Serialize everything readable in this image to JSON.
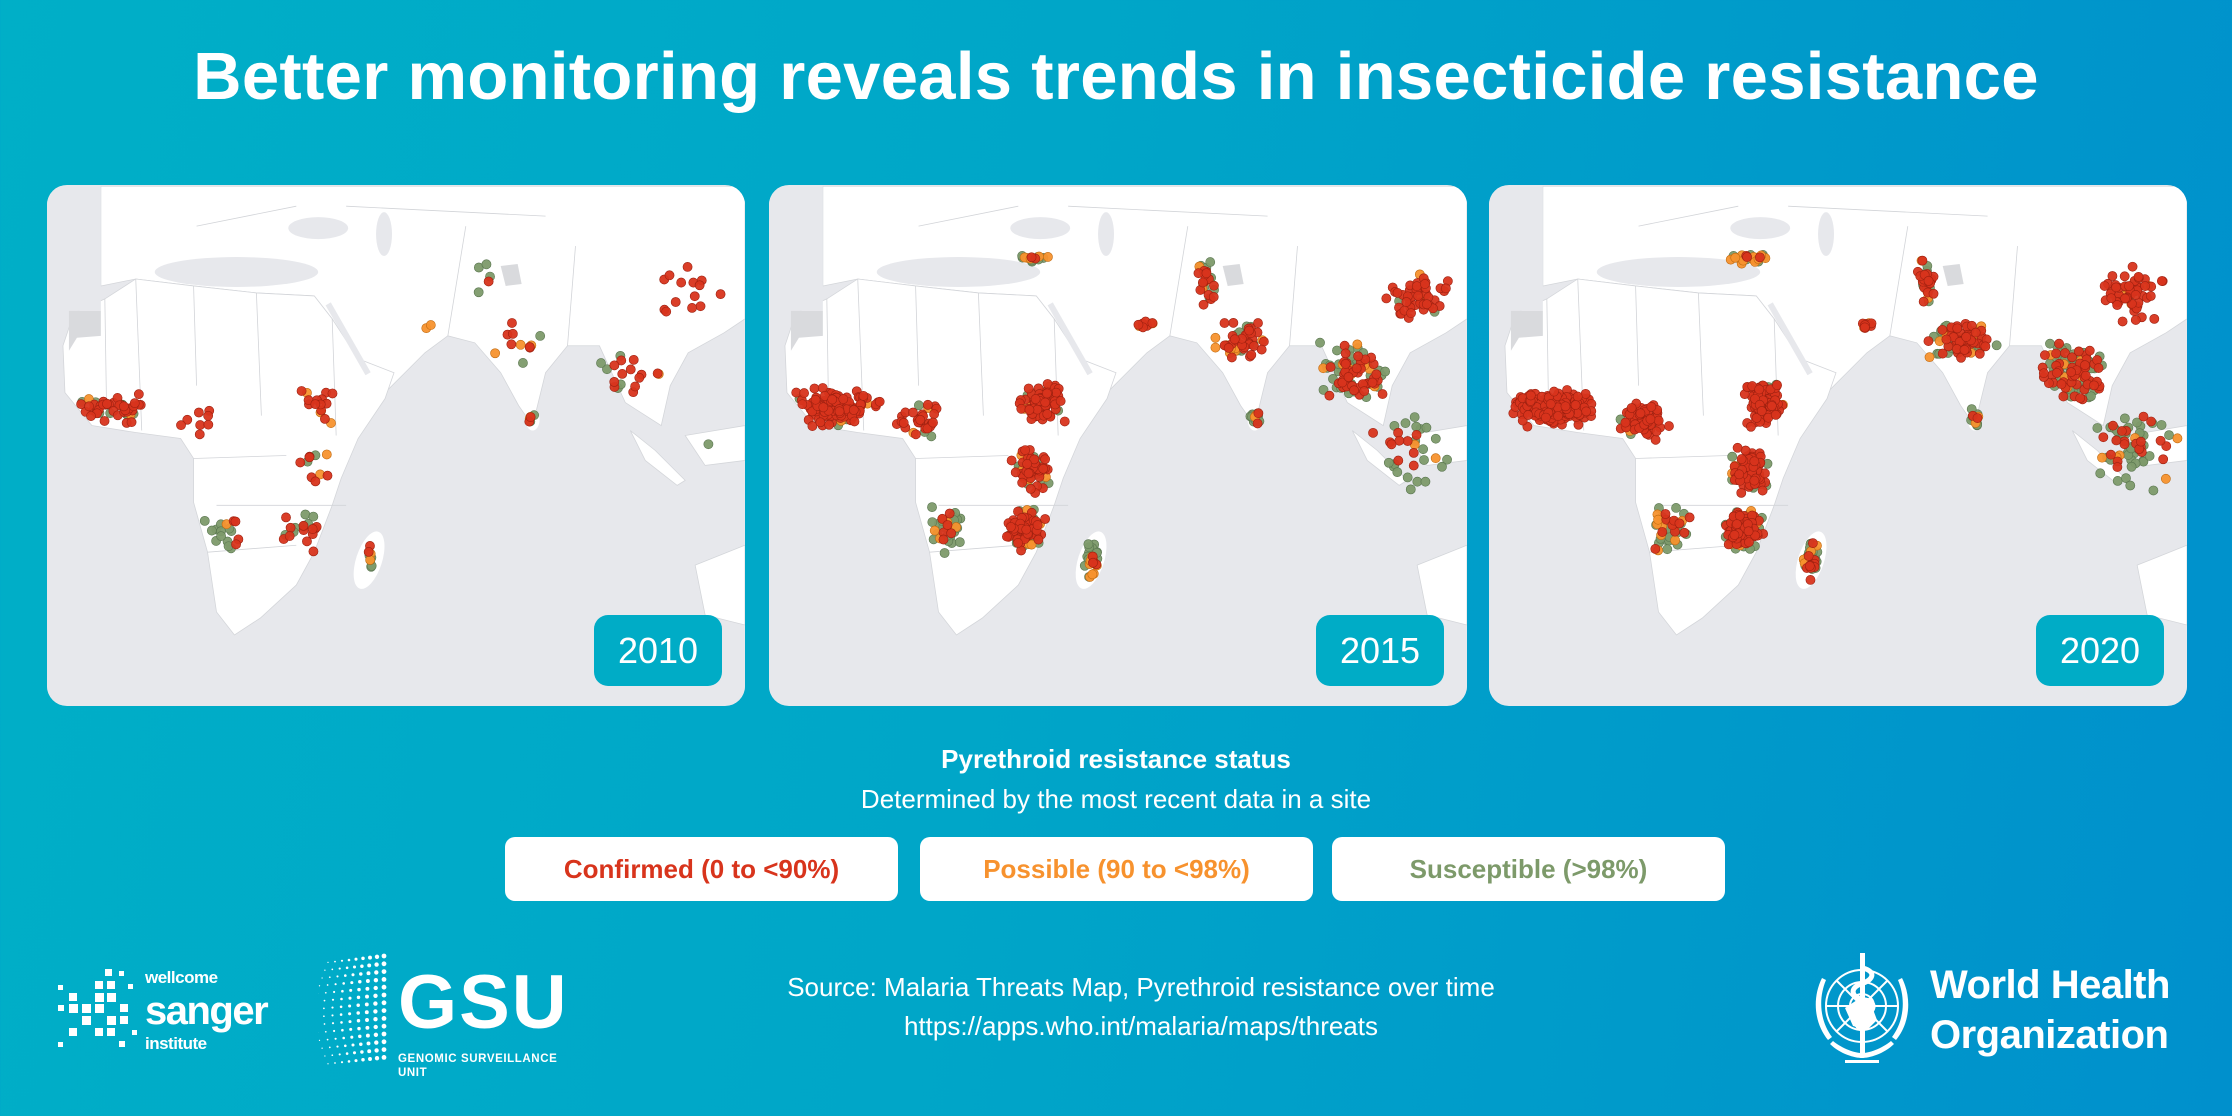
{
  "title": "Better monitoring reveals trends in insecticide resistance",
  "panels": [
    {
      "year": "2010"
    },
    {
      "year": "2015"
    },
    {
      "year": "2020"
    }
  ],
  "legend": {
    "title": "Pyrethroid resistance status",
    "subtitle": "Determined by the most recent data in a site",
    "items": [
      {
        "label": "Confirmed (0 to <90%)",
        "color": "#d8341c"
      },
      {
        "label": "Possible (90 to <98%)",
        "color": "#f7922e"
      },
      {
        "label": "Susceptible (>98%)",
        "color": "#7d9a6a"
      }
    ]
  },
  "source": {
    "line1": "Source: Malaria Threats Map, Pyrethroid resistance over time",
    "line2": "https://apps.who.int/malaria/maps/threats"
  },
  "logos": {
    "sanger": {
      "line1": "wellcome",
      "line2": "sanger",
      "line3": "institute"
    },
    "gsu": {
      "name": "GSU",
      "subtitle": "GENOMIC SURVEILLANCE UNIT"
    },
    "who": {
      "line1": "World Health",
      "line2": "Organization"
    }
  },
  "colors": {
    "background_left": "#00afc7",
    "background_right": "#0090cc",
    "badge": "#00acc6",
    "ocean": "#e7e8ec",
    "land": "#ffffff"
  }
}
